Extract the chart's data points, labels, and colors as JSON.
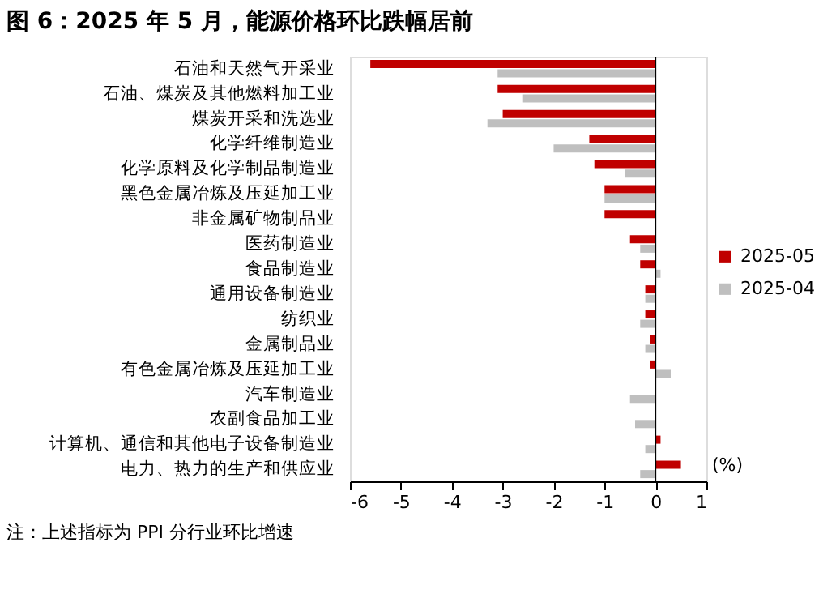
{
  "chart_data": {
    "type": "bar",
    "orientation": "horizontal",
    "title": "图 6：2025 年 5 月，能源价格环比跌幅居前",
    "categories": [
      "石油和天然气开采业",
      "石油、煤炭及其他燃料加工业",
      "煤炭开采和洗选业",
      "化学纤维制造业",
      "化学原料及化学制品制造业",
      "黑色金属冶炼及压延加工业",
      "非金属矿物制品业",
      "医药制造业",
      "食品制造业",
      "通用设备制造业",
      "纺织业",
      "金属制品业",
      "有色金属冶炼及压延加工业",
      "汽车制造业",
      "农副食品加工业",
      "计算机、通信和其他电子设备制造业",
      "电力、热力的生产和供应业"
    ],
    "series": [
      {
        "name": "2025-05",
        "color": "#c00000",
        "values": [
          -5.6,
          -3.1,
          -3.0,
          -1.3,
          -1.2,
          -1.0,
          -1.0,
          -0.5,
          -0.3,
          -0.2,
          -0.2,
          -0.1,
          -0.1,
          0.0,
          0.0,
          0.1,
          0.5
        ]
      },
      {
        "name": "2025-04",
        "color": "#bfbfbf",
        "values": [
          -3.1,
          -2.6,
          -3.3,
          -2.0,
          -0.6,
          -1.0,
          0.0,
          -0.3,
          0.1,
          -0.2,
          -0.3,
          -0.2,
          0.3,
          -0.5,
          -0.4,
          -0.2,
          -0.3
        ]
      }
    ],
    "xlim": [
      -6,
      1
    ],
    "xticks": [
      -6,
      -5,
      -4,
      -3,
      -2,
      -1,
      0,
      1
    ],
    "xlabel": "(%)",
    "ref_lines": [
      {
        "axis": "x",
        "value": 0
      }
    ],
    "grid": false,
    "legend": "right",
    "annotations": [
      "注：上述指标为 PPI 分行业环比增速"
    ]
  }
}
